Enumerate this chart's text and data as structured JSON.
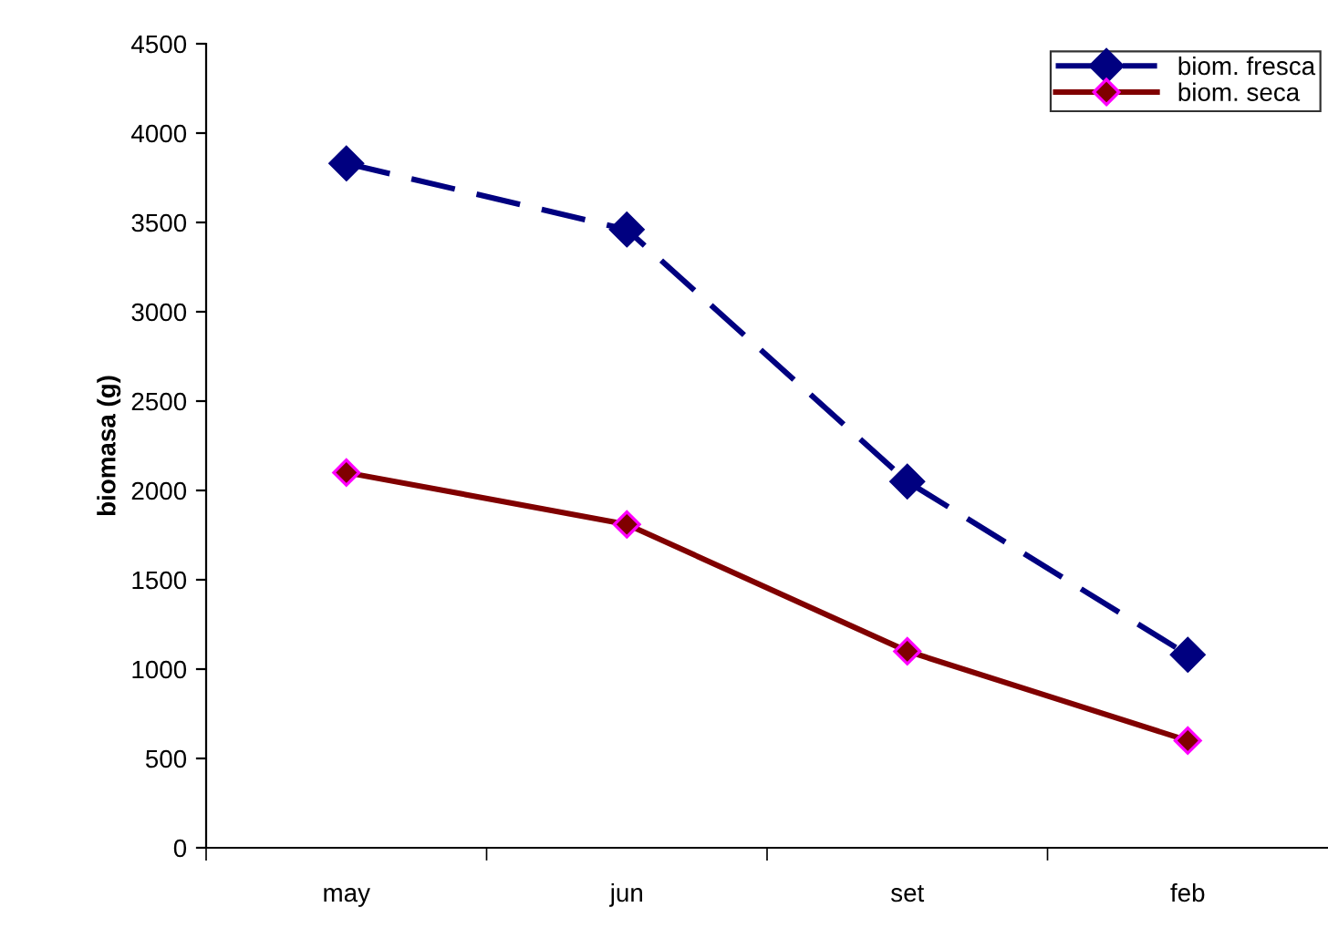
{
  "chart_data": {
    "type": "line",
    "ylabel": "biomasa (g)",
    "categories": [
      "may",
      "jun",
      "set",
      "feb"
    ],
    "series": [
      {
        "name": "biom. fresca",
        "color": "#000080",
        "values": [
          3830,
          3460,
          2050,
          1080
        ],
        "line_style": "dashed"
      },
      {
        "name": "biom. seca",
        "color": "#800000",
        "values": [
          2100,
          1810,
          1100,
          600
        ],
        "line_style": "solid"
      }
    ],
    "ylim": [
      0,
      4500
    ],
    "yticks": [
      0,
      500,
      1000,
      1500,
      2000,
      2500,
      3000,
      3500,
      4000,
      4500
    ],
    "grid": false,
    "legend": "top right",
    "marker": "diamond"
  }
}
